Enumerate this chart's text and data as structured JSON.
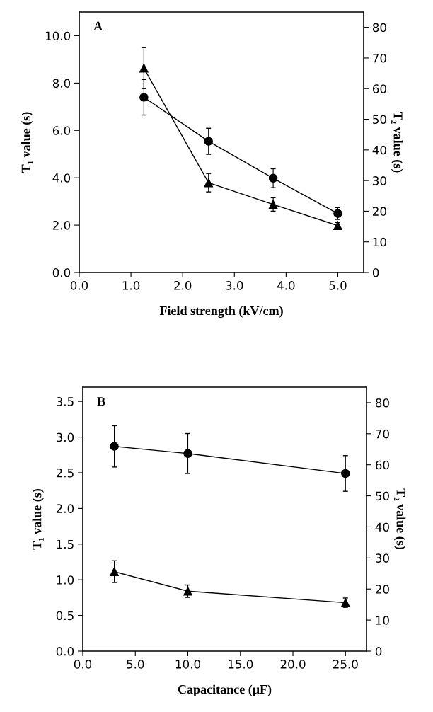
{
  "chart_data": [
    {
      "type": "line",
      "xlabel": "Field strength (kV/cm)",
      "ylabel": "T₁ value (s)",
      "y2label": "T₂ value (s)",
      "annotations": [
        "A"
      ],
      "line_style": "solid",
      "grid": false,
      "xlim": [
        0,
        5.5
      ],
      "xticks": [
        {
          "value": 0,
          "label": "0.0"
        },
        {
          "value": 1,
          "label": "1.0"
        },
        {
          "value": 2,
          "label": "2.0"
        },
        {
          "value": 3,
          "label": "3.0"
        },
        {
          "value": 4,
          "label": "4.0"
        },
        {
          "value": 5,
          "label": "5.0"
        }
      ],
      "ylim": [
        0,
        11
      ],
      "yticks": [
        {
          "value": 0,
          "label": "0.0"
        },
        {
          "value": 2,
          "label": "2.0"
        },
        {
          "value": 4,
          "label": "4.0"
        },
        {
          "value": 6,
          "label": "6.0"
        },
        {
          "value": 8,
          "label": "8.0"
        },
        {
          "value": 10,
          "label": "10.0"
        }
      ],
      "y2lim": [
        0,
        85
      ],
      "y2ticks": [
        0,
        10,
        20,
        30,
        40,
        50,
        60,
        70,
        80
      ],
      "x": [
        1.25,
        2.5,
        3.75,
        5.0
      ],
      "series": [
        {
          "color": "#000000",
          "marker": "circle",
          "values": [
            7.4,
            5.54,
            3.98,
            2.49
          ],
          "errors": [
            0.75,
            0.55,
            0.4,
            0.25
          ]
        },
        {
          "color": "#000000",
          "marker": "triangle",
          "axis": "y2",
          "values": [
            66.7,
            29.3,
            22.2,
            15.3
          ],
          "errors": [
            6.7,
            3.0,
            2.2,
            1.0
          ]
        }
      ]
    },
    {
      "type": "line",
      "xlabel": "Capacitance (μF)",
      "ylabel": "T₁ value (s)",
      "y2label": "T₂ value (s)",
      "annotations": [
        "B"
      ],
      "line_style": "solid",
      "grid": false,
      "xlim": [
        0,
        27
      ],
      "xticks": [
        {
          "value": 0,
          "label": "0.0"
        },
        {
          "value": 5,
          "label": "5.0"
        },
        {
          "value": 10,
          "label": "10.0"
        },
        {
          "value": 15,
          "label": "15.0"
        },
        {
          "value": 20,
          "label": "20.0"
        },
        {
          "value": 25,
          "label": "25.0"
        }
      ],
      "ylim": [
        0,
        3.7
      ],
      "yticks": [
        {
          "value": 0,
          "label": "0.0"
        },
        0.5,
        {
          "value": 1,
          "label": "1.0"
        },
        1.5,
        {
          "value": 2,
          "label": "2.0"
        },
        2.5,
        {
          "value": 3,
          "label": "3.0"
        },
        3.5
      ],
      "y2lim": [
        0,
        85
      ],
      "y2ticks": [
        0,
        10,
        20,
        30,
        40,
        50,
        60,
        70,
        80
      ],
      "x": [
        3,
        10,
        25
      ],
      "series": [
        {
          "color": "#000000",
          "marker": "circle",
          "values": [
            2.87,
            2.77,
            2.49
          ],
          "errors": [
            0.29,
            0.28,
            0.25
          ]
        },
        {
          "color": "#000000",
          "marker": "triangle",
          "axis": "y2",
          "values": [
            25.6,
            19.3,
            15.6
          ],
          "errors": [
            3.5,
            2.0,
            1.5
          ]
        }
      ]
    }
  ]
}
